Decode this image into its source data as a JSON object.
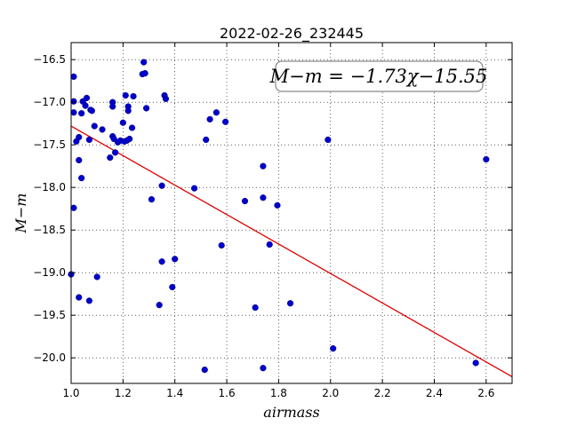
{
  "chart_data": {
    "type": "scatter",
    "title": "2022-02-26_232445",
    "xlabel": "airmass",
    "ylabel": "M−m",
    "xlim": [
      1.0,
      2.7
    ],
    "ylim": [
      -20.3,
      -16.3
    ],
    "y_inverted": true,
    "grid": true,
    "xticks": [
      1.0,
      1.2,
      1.4,
      1.6,
      1.8,
      2.0,
      2.2,
      2.4,
      2.6
    ],
    "xtick_labels": [
      "1.0",
      "1.2",
      "1.4",
      "1.6",
      "1.8",
      "2.0",
      "2.2",
      "2.4",
      "2.6"
    ],
    "yticks": [
      -16.5,
      -17.0,
      -17.5,
      -18.0,
      -18.5,
      -19.0,
      -19.5,
      -20.0
    ],
    "ytick_labels": [
      "−16.5",
      "−17.0",
      "−17.5",
      "−18.0",
      "−18.5",
      "−19.0",
      "−19.5",
      "−20.0"
    ],
    "point_color": "#0000cc",
    "fit_color": "#dd0000",
    "annotation": "M−m = −1.73χ−15.55",
    "annotation_position": "top-right",
    "fit": {
      "slope": -1.73,
      "intercept": -15.55,
      "x_range": [
        1.0,
        2.7
      ]
    },
    "points": [
      [
        1.0,
        -19.02
      ],
      [
        1.01,
        -16.7
      ],
      [
        1.01,
        -16.99
      ],
      [
        1.01,
        -17.12
      ],
      [
        1.01,
        -18.24
      ],
      [
        1.02,
        -17.46
      ],
      [
        1.03,
        -17.41
      ],
      [
        1.03,
        -17.68
      ],
      [
        1.03,
        -19.29
      ],
      [
        1.04,
        -17.13
      ],
      [
        1.04,
        -17.89
      ],
      [
        1.045,
        -16.99
      ],
      [
        1.055,
        -17.04
      ],
      [
        1.06,
        -16.95
      ],
      [
        1.07,
        -17.44
      ],
      [
        1.07,
        -19.33
      ],
      [
        1.075,
        -17.09
      ],
      [
        1.08,
        -17.1
      ],
      [
        1.09,
        -17.28
      ],
      [
        1.1,
        -19.05
      ],
      [
        1.12,
        -17.32
      ],
      [
        1.15,
        -17.65
      ],
      [
        1.16,
        -17.0
      ],
      [
        1.16,
        -17.05
      ],
      [
        1.16,
        -17.4
      ],
      [
        1.165,
        -17.43
      ],
      [
        1.17,
        -17.59
      ],
      [
        1.18,
        -17.47
      ],
      [
        1.19,
        -17.45
      ],
      [
        1.2,
        -17.24
      ],
      [
        1.205,
        -17.46
      ],
      [
        1.21,
        -16.92
      ],
      [
        1.215,
        -17.45
      ],
      [
        1.22,
        -17.05
      ],
      [
        1.22,
        -17.1
      ],
      [
        1.225,
        -17.43
      ],
      [
        1.235,
        -17.3
      ],
      [
        1.24,
        -16.93
      ],
      [
        1.275,
        -16.67
      ],
      [
        1.28,
        -16.53
      ],
      [
        1.285,
        -16.66
      ],
      [
        1.29,
        -17.07
      ],
      [
        1.31,
        -18.14
      ],
      [
        1.34,
        -19.38
      ],
      [
        1.35,
        -17.98
      ],
      [
        1.35,
        -18.87
      ],
      [
        1.36,
        -16.92
      ],
      [
        1.365,
        -16.96
      ],
      [
        1.39,
        -19.17
      ],
      [
        1.4,
        -18.84
      ],
      [
        1.475,
        -18.01
      ],
      [
        1.515,
        -20.14
      ],
      [
        1.52,
        -17.44
      ],
      [
        1.535,
        -17.2
      ],
      [
        1.56,
        -17.12
      ],
      [
        1.58,
        -18.68
      ],
      [
        1.595,
        -17.23
      ],
      [
        1.67,
        -18.16
      ],
      [
        1.71,
        -19.41
      ],
      [
        1.74,
        -17.75
      ],
      [
        1.74,
        -18.12
      ],
      [
        1.74,
        -20.12
      ],
      [
        1.765,
        -18.67
      ],
      [
        1.795,
        -18.21
      ],
      [
        1.845,
        -19.36
      ],
      [
        1.99,
        -17.44
      ],
      [
        2.01,
        -19.89
      ],
      [
        2.56,
        -20.06
      ],
      [
        2.6,
        -17.67
      ]
    ]
  }
}
